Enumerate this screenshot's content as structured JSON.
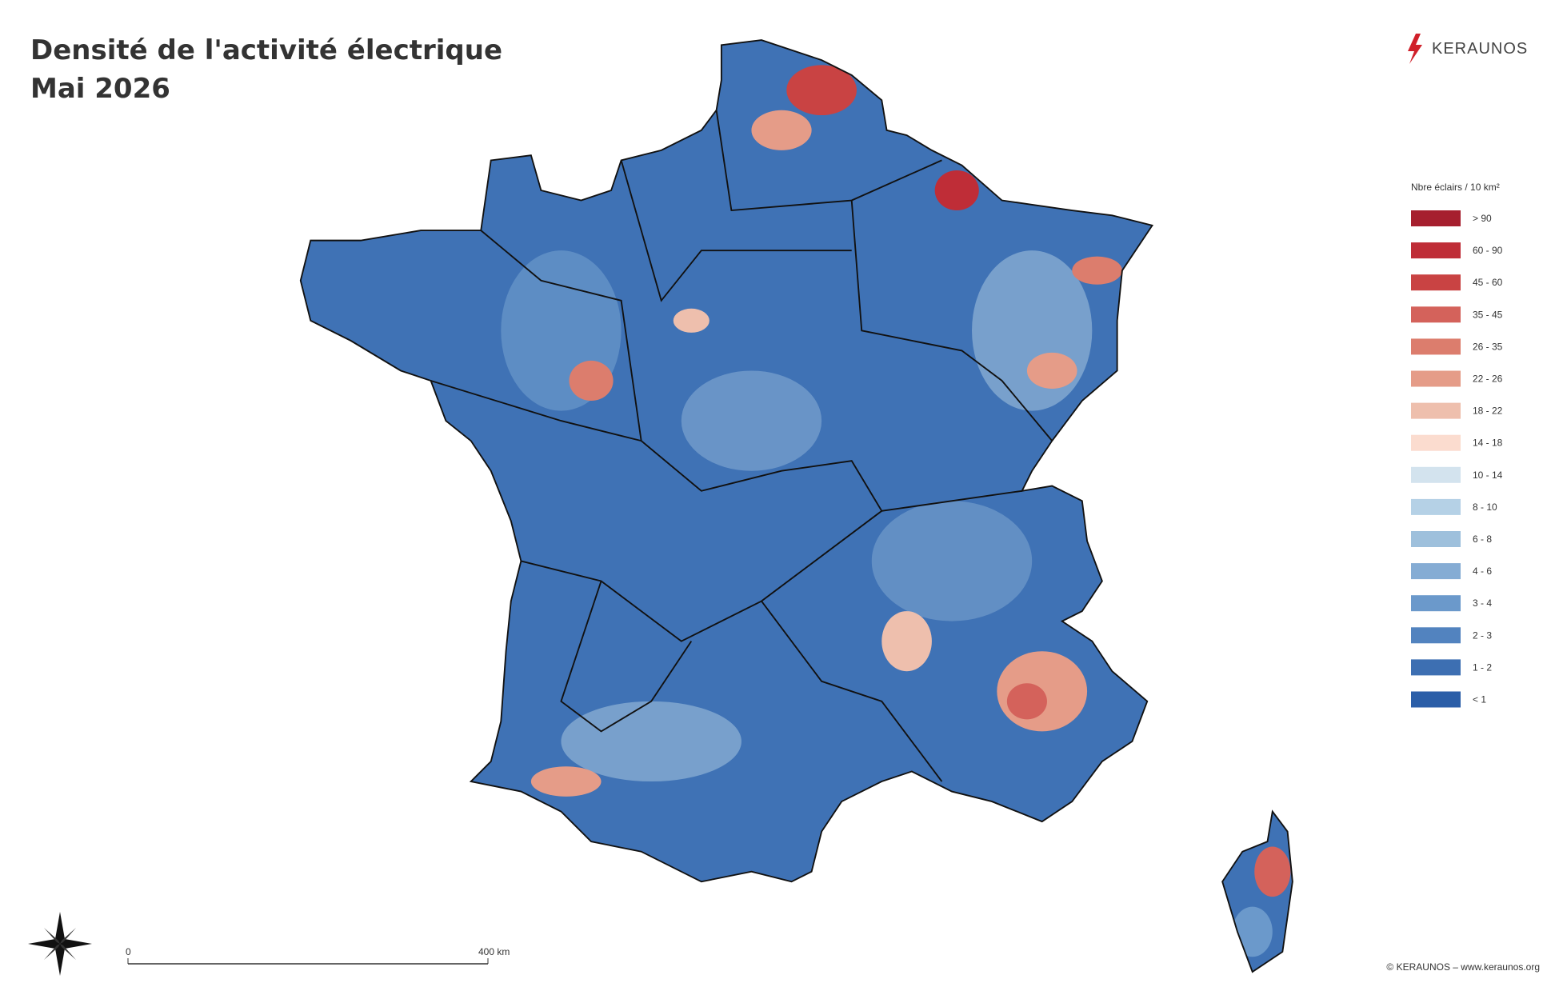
{
  "header": {
    "title_line1": "Densité de l'activité électrique",
    "title_line2": "Mai 2026"
  },
  "logo": "KERAUNOS",
  "legend": {
    "title": "Nbre éclairs / 10 km²",
    "items": [
      {
        "label": "> 90",
        "color": "#a61f2e"
      },
      {
        "label": "60 - 90",
        "color": "#bf2d37"
      },
      {
        "label": "45 - 60",
        "color": "#c94343"
      },
      {
        "label": "35 - 45",
        "color": "#d4625b"
      },
      {
        "label": "26 - 35",
        "color": "#dc7d6d"
      },
      {
        "label": "22 - 26",
        "color": "#e59c88"
      },
      {
        "label": "18 - 22",
        "color": "#eebfad"
      },
      {
        "label": "14 - 18",
        "color": "#fbdccf"
      },
      {
        "label": "10 - 14",
        "color": "#d3e3ee"
      },
      {
        "label": "8 - 10",
        "color": "#b5d1e6"
      },
      {
        "label": "6 - 8",
        "color": "#9ec0dc"
      },
      {
        "label": "4 - 6",
        "color": "#85acd4"
      },
      {
        "label": "3 - 4",
        "color": "#6b99cb"
      },
      {
        "label": "2 - 3",
        "color": "#5283bf"
      },
      {
        "label": "1 - 2",
        "color": "#3d6fb2"
      },
      {
        "label": "< 1",
        "color": "#2b5ea8"
      }
    ]
  },
  "scale_bar": {
    "start": "0",
    "end": "400 km"
  },
  "copyright": "© KERAUNOS – www.keraunos.org"
}
